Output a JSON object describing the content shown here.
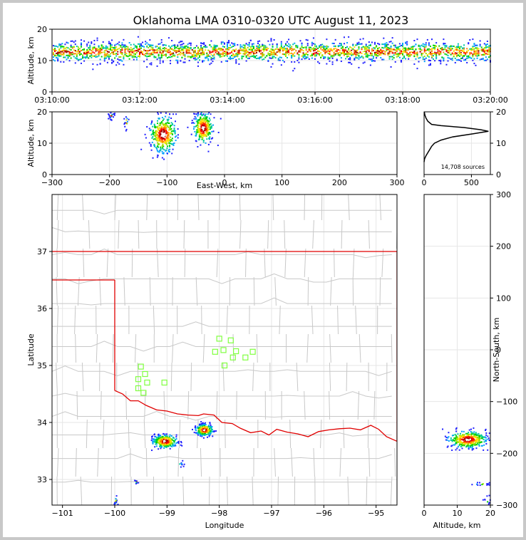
{
  "title": "Oklahoma LMA 0310-0320 UTC August 11, 2023",
  "colors": {
    "density_scale": [
      "#2020ff",
      "#00a0ff",
      "#00c8a0",
      "#00d000",
      "#a0e000",
      "#ffe000",
      "#ff8000",
      "#ff0000",
      "#a00000",
      "#ffffff"
    ],
    "state_border": "#e00000",
    "county_lines": "#c8c8c8",
    "stations": "#80ff40",
    "grid": "#e6e6e6"
  },
  "chart_data": [
    {
      "id": "time_height",
      "type": "heatmap",
      "ylabel": "Altitude, km",
      "xlim_sec": [
        0,
        600
      ],
      "ylim": [
        0,
        20
      ],
      "x_ticks": [
        "03:10:00",
        "03:12:00",
        "03:14:00",
        "03:16:00",
        "03:18:00",
        "03:20:00"
      ],
      "y_ticks": [
        0,
        10,
        20
      ],
      "altitude_band_km": [
        6,
        18
      ],
      "core_altitude_km": 13
    },
    {
      "id": "ew_altitude",
      "type": "heatmap",
      "xlabel": "East-West, km",
      "ylabel": "Altitude, km",
      "xlim": [
        -300,
        300
      ],
      "ylim": [
        0,
        20
      ],
      "x_ticks": [
        -300,
        -200,
        -100,
        0,
        100,
        200,
        300
      ],
      "y_ticks": [
        0,
        10,
        20
      ],
      "clusters": [
        {
          "x": -108,
          "alt": 13,
          "spread_x": 14,
          "spread_alt": 3.5,
          "n": 360
        },
        {
          "x": -38,
          "alt": 15,
          "spread_x": 10,
          "spread_alt": 3.0,
          "n": 280
        },
        {
          "x": -198,
          "alt": 19,
          "spread_x": 4,
          "spread_alt": 0.8,
          "n": 18
        },
        {
          "x": -172,
          "alt": 17,
          "spread_x": 3,
          "spread_alt": 2,
          "n": 14
        }
      ]
    },
    {
      "id": "altitude_histogram",
      "type": "line",
      "xlim": [
        0,
        700
      ],
      "ylim": [
        0,
        20
      ],
      "x_ticks": [
        0,
        500
      ],
      "y_ticks": [
        0,
        10,
        20
      ],
      "annotation": "14,708 sources",
      "points": [
        [
          0,
          4
        ],
        [
          5,
          5
        ],
        [
          20,
          6
        ],
        [
          40,
          7
        ],
        [
          60,
          8
        ],
        [
          80,
          9
        ],
        [
          110,
          10
        ],
        [
          180,
          11
        ],
        [
          300,
          12
        ],
        [
          520,
          13
        ],
        [
          680,
          13.8
        ],
        [
          600,
          14.3
        ],
        [
          420,
          15
        ],
        [
          180,
          15.6
        ],
        [
          80,
          16
        ],
        [
          40,
          17
        ],
        [
          20,
          18
        ],
        [
          8,
          19
        ],
        [
          2,
          20
        ]
      ]
    },
    {
      "id": "plan_map",
      "type": "scatter",
      "xlabel": "Longitude",
      "ylabel": "Latitude",
      "xlim": [
        -101.2,
        -94.6
      ],
      "ylim": [
        32.55,
        38.0
      ],
      "x_ticks": [
        -101,
        -100,
        -99,
        -98,
        -97,
        -96,
        -95
      ],
      "y_ticks": [
        33,
        34,
        35,
        36,
        37
      ],
      "stations": [
        [
          -99.5,
          34.98
        ],
        [
          -99.42,
          34.85
        ],
        [
          -99.38,
          34.7
        ],
        [
          -99.55,
          34.76
        ],
        [
          -99.55,
          34.6
        ],
        [
          -99.45,
          34.52
        ],
        [
          -99.05,
          34.7
        ],
        [
          -98.0,
          35.47
        ],
        [
          -97.78,
          35.44
        ],
        [
          -98.08,
          35.24
        ],
        [
          -97.92,
          35.27
        ],
        [
          -97.68,
          35.25
        ],
        [
          -97.74,
          35.14
        ],
        [
          -97.5,
          35.14
        ],
        [
          -97.36,
          35.24
        ],
        [
          -97.9,
          35.0
        ]
      ],
      "clusters": [
        {
          "lon": -99.05,
          "lat": 33.68,
          "spread_lon": 0.14,
          "spread_lat": 0.07,
          "n": 320
        },
        {
          "lon": -98.3,
          "lat": 33.88,
          "spread_lon": 0.1,
          "spread_lat": 0.06,
          "n": 260
        },
        {
          "lon": -99.6,
          "lat": 32.97,
          "spread_lon": 0.02,
          "spread_lat": 0.02,
          "n": 10
        },
        {
          "lon": -100.0,
          "lat": 32.64,
          "spread_lon": 0.03,
          "spread_lat": 0.06,
          "n": 14
        },
        {
          "lon": -98.75,
          "lat": 33.28,
          "spread_lon": 0.03,
          "spread_lat": 0.03,
          "n": 10
        }
      ]
    },
    {
      "id": "ns_altitude",
      "type": "heatmap",
      "xlabel": "Altitude, km",
      "ylabel": "North-South, km",
      "xlim": [
        0,
        20
      ],
      "ylim": [
        -300,
        300
      ],
      "x_ticks": [
        0,
        10,
        20
      ],
      "y_ticks": [
        -300,
        -200,
        -100,
        0,
        100,
        200,
        300
      ],
      "clusters": [
        {
          "alt": 13,
          "y": -172,
          "spread_alt": 3.5,
          "spread_y": 10,
          "n": 380
        },
        {
          "alt": 17,
          "y": -258,
          "spread_alt": 2,
          "spread_y": 2,
          "n": 16
        },
        {
          "alt": 19,
          "y": -290,
          "spread_alt": 1,
          "spread_y": 5,
          "n": 10
        }
      ]
    }
  ]
}
